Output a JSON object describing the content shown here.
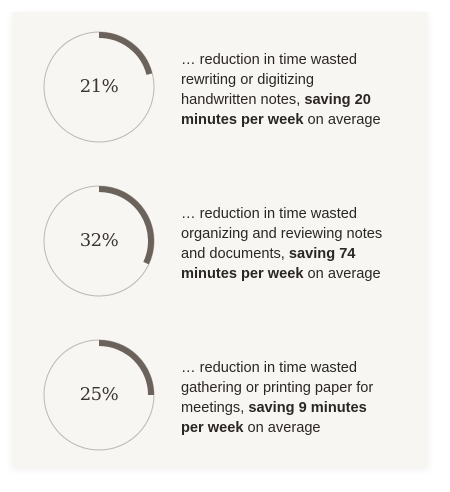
{
  "colors": {
    "card_background": "#f8f6f2",
    "ring_track": "#bdb7b0",
    "ring_progress": "#6b625c",
    "text": "#2a2624"
  },
  "stats": [
    {
      "percent_label": "21%",
      "progress": 0.21,
      "text_before": "… reduction in time wasted rewriting or digitizing handwritten notes, ",
      "text_bold": "saving 20 minutes per week",
      "text_after": " on average"
    },
    {
      "percent_label": "32%",
      "progress": 0.32,
      "text_before": "… reduction in time wasted organizing and reviewing notes and documents, ",
      "text_bold": "saving 74 minutes per week",
      "text_after": " on average"
    },
    {
      "percent_label": "25%",
      "progress": 0.25,
      "text_before": "… reduction in time wasted gathering or printing paper for meetings, ",
      "text_bold": "saving 9 minutes per week",
      "text_after": " on average"
    }
  ]
}
